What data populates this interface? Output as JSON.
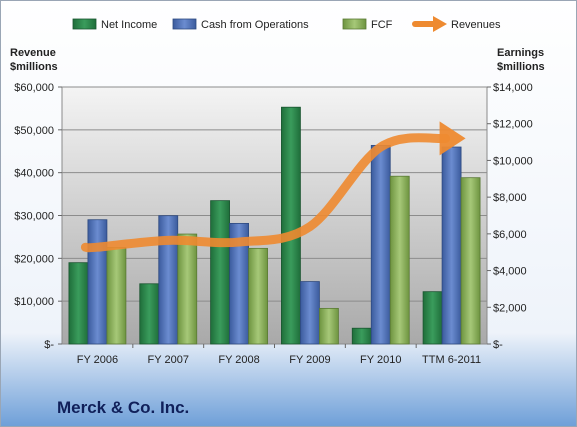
{
  "chart_data": {
    "type": "bar",
    "title": "Merck & Co. Inc.",
    "categories": [
      "FY 2006",
      "FY 2007",
      "FY 2008",
      "FY 2009",
      "FY 2010",
      "TTM 6-2011"
    ],
    "left_axis": {
      "title_line1": "Revenue",
      "title_line2": "$millions",
      "range": [
        0,
        60000
      ],
      "ticks": [
        0,
        10000,
        20000,
        30000,
        40000,
        50000,
        60000
      ],
      "tick_labels": [
        "$-",
        "$10,000",
        "$20,000",
        "$30,000",
        "$40,000",
        "$50,000",
        "$60,000"
      ]
    },
    "right_axis": {
      "title_line1": "Earnings",
      "title_line2": "$millions",
      "range": [
        0,
        14000
      ],
      "ticks": [
        0,
        2000,
        4000,
        6000,
        8000,
        10000,
        12000,
        14000
      ],
      "tick_labels": [
        "$-",
        "$2,000",
        "$4,000",
        "$6,000",
        "$8,000",
        "$10,000",
        "$12,000",
        "$14,000"
      ]
    },
    "series": [
      {
        "name": "Net Income",
        "kind": "bar",
        "axis": "right",
        "color": "#2e8b4e",
        "values": [
          4430,
          3280,
          7810,
          12900,
          860,
          2850
        ]
      },
      {
        "name": "Cash from Operations",
        "kind": "bar",
        "axis": "right",
        "color": "#4f72b8",
        "values": [
          6770,
          6990,
          6570,
          3400,
          10820,
          10730
        ]
      },
      {
        "name": "FCF",
        "kind": "bar",
        "axis": "right",
        "color": "#8cb45a",
        "values": [
          5260,
          5990,
          5210,
          1940,
          9140,
          9060
        ]
      },
      {
        "name": "Revenues",
        "kind": "line-arrow",
        "axis": "left",
        "color": "#ee8a30",
        "values": [
          22600,
          24200,
          23800,
          27400,
          46000,
          48000
        ]
      }
    ],
    "grid": true,
    "legend_position": "top"
  }
}
